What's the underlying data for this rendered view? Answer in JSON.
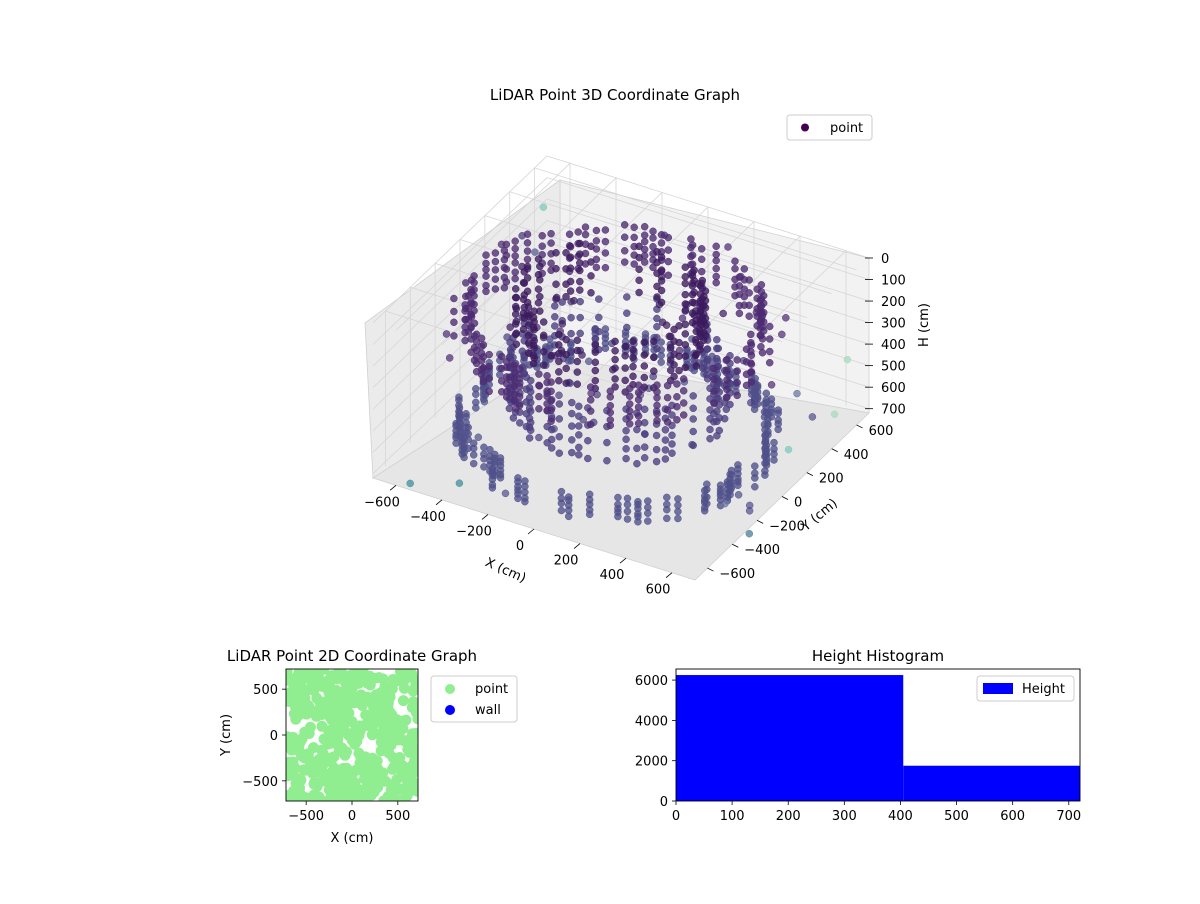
{
  "chart_data": [
    {
      "type": "scatter",
      "projection": "3d",
      "title": "LiDAR Point 3D Coordinate Graph",
      "xlabel": "X (cm)",
      "ylabel": "Y (cm)",
      "zlabel": "H (cm)",
      "xticks": [
        -600,
        -400,
        -200,
        0,
        200,
        400,
        600
      ],
      "yticks": [
        -600,
        -400,
        -200,
        0,
        200,
        400,
        600
      ],
      "zticks": [
        0,
        100,
        200,
        300,
        400,
        500,
        600,
        700
      ],
      "xlim": [
        -700,
        700
      ],
      "ylim": [
        -700,
        700
      ],
      "zlim": [
        720,
        0
      ],
      "z_inverted": true,
      "grid": true,
      "colormap": "viridis",
      "legend": {
        "position": "top-right",
        "entries": [
          {
            "name": "point",
            "color": "#440154"
          }
        ]
      },
      "structure": {
        "rings": [
          {
            "cx": -80,
            "cy": 80,
            "radius": 590,
            "h_min": 150,
            "h_max": 320,
            "color": "#4d2a72"
          },
          {
            "cx": -80,
            "cy": 80,
            "radius": 360,
            "h_min": 90,
            "h_max": 300,
            "color": "#3b1a5e"
          },
          {
            "cx": -40,
            "cy": 40,
            "radius": 420,
            "h_min": 330,
            "h_max": 560,
            "color": "#4a3d7f"
          },
          {
            "cx": -40,
            "cy": 40,
            "radius": 600,
            "h_min": 620,
            "h_max": 710,
            "color": "#4f4f8a"
          }
        ],
        "outliers": [
          {
            "x": -640,
            "y": 560,
            "h": 140,
            "color": "#7fc9c0"
          },
          {
            "x": -700,
            "y": 500,
            "h": 260,
            "color": "#4c3f80"
          },
          {
            "x": -720,
            "y": 640,
            "h": 420,
            "color": "#5a5f92"
          },
          {
            "x": -200,
            "y": 720,
            "h": 210,
            "color": "#4c3f80"
          },
          {
            "x": 560,
            "y": 380,
            "h": 500,
            "color": "#6a78a0"
          },
          {
            "x": 660,
            "y": 600,
            "h": 430,
            "color": "#a6dbbd"
          },
          {
            "x": 680,
            "y": 460,
            "h": 600,
            "color": "#a6dbbd"
          },
          {
            "x": 620,
            "y": 200,
            "h": 640,
            "color": "#7fc9c0"
          },
          {
            "x": -560,
            "y": -660,
            "h": 720,
            "color": "#3f8f9a"
          },
          {
            "x": -400,
            "y": -560,
            "h": 720,
            "color": "#3f8f9a"
          },
          {
            "x": 720,
            "y": -300,
            "h": 720,
            "color": "#4a7f93"
          },
          {
            "x": 560,
            "y": -200,
            "h": 690,
            "color": "#6a78a0"
          }
        ]
      }
    },
    {
      "type": "scatter",
      "title": "LiDAR Point 2D Coordinate Graph",
      "xlabel": "X (cm)",
      "ylabel": "Y (cm)",
      "xticks": [
        -500,
        0,
        500
      ],
      "yticks": [
        -500,
        0,
        500
      ],
      "xlim": [
        -720,
        720
      ],
      "ylim": [
        -720,
        720
      ],
      "legend": {
        "position": "outside-right",
        "entries": [
          {
            "name": "point",
            "color": "#90ee90"
          },
          {
            "name": "wall",
            "color": "#0000ff"
          }
        ]
      },
      "series": [
        {
          "name": "point",
          "color": "#90ee90",
          "density": "dense",
          "x_range": [
            -720,
            720
          ],
          "y_range": [
            -720,
            720
          ]
        },
        {
          "name": "wall",
          "color": "#0000ff",
          "count": 0
        }
      ]
    },
    {
      "type": "bar",
      "subtype": "histogram",
      "title": "Height Histogram",
      "xticks": [
        0,
        100,
        200,
        300,
        400,
        500,
        600,
        700
      ],
      "yticks": [
        0,
        2000,
        4000,
        6000
      ],
      "xlim": [
        0,
        720
      ],
      "ylim": [
        0,
        6550
      ],
      "legend": {
        "position": "top-right",
        "entries": [
          {
            "name": "Height",
            "color": "#0000ff"
          }
        ]
      },
      "color": "#0000ff",
      "bins": [
        {
          "start": 0,
          "end": 405,
          "count": 6250
        },
        {
          "start": 405,
          "end": 720,
          "count": 1750
        }
      ]
    }
  ]
}
